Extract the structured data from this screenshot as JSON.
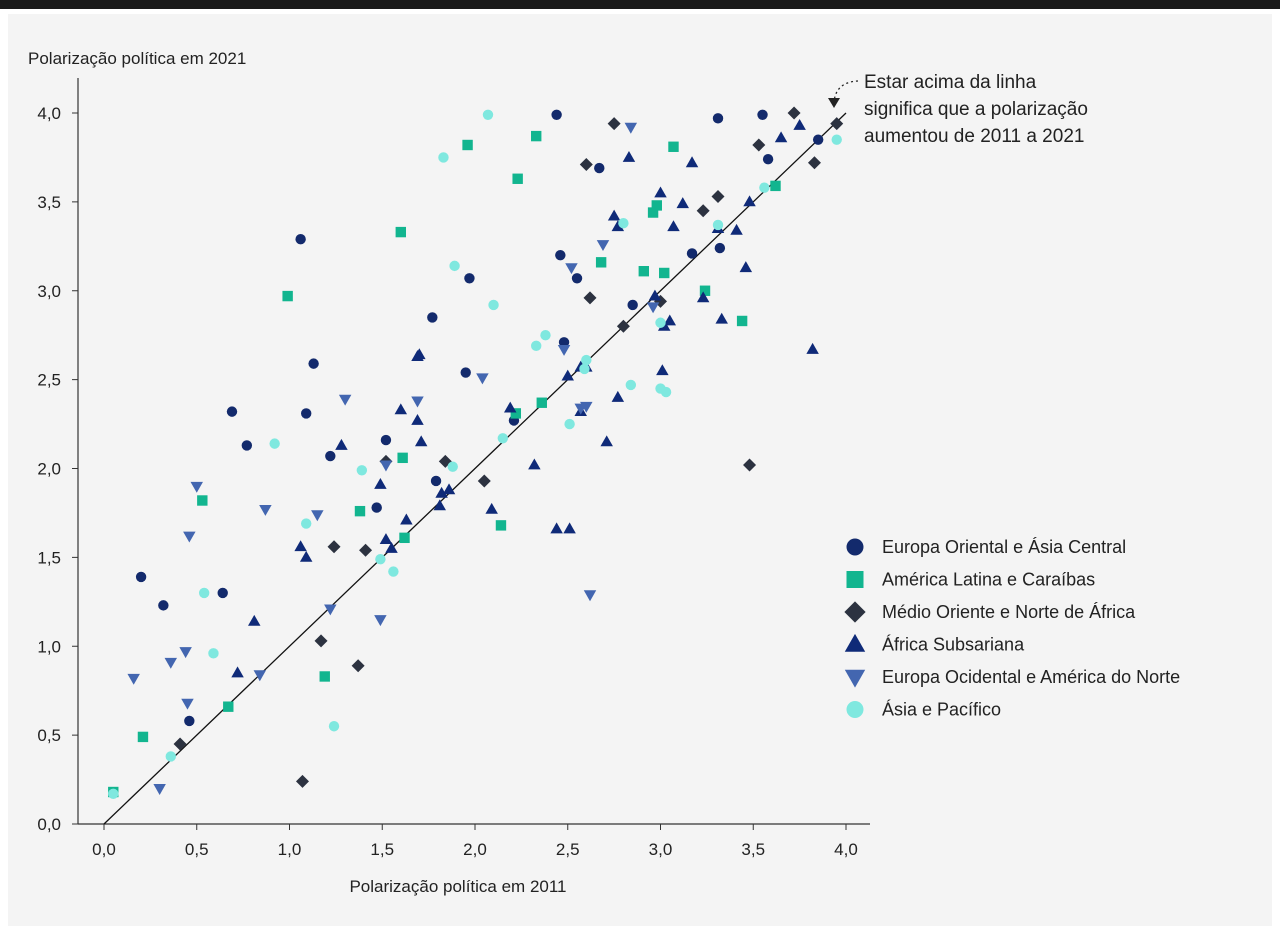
{
  "chart_data": {
    "type": "scatter",
    "title": "",
    "xlabel": "Polarização política em 2011",
    "ylabel": "Polarização política em 2021",
    "xlim": [
      0,
      4
    ],
    "ylim": [
      0,
      4
    ],
    "xticks": [
      "0,0",
      "0,5",
      "1,0",
      "1,5",
      "2,0",
      "2,5",
      "3,0",
      "3,5",
      "4,0"
    ],
    "yticks": [
      "0,0",
      "0,5",
      "1,0",
      "1,5",
      "2,0",
      "2,5",
      "3,0",
      "3,5",
      "4,0"
    ],
    "grid": false,
    "legend_position": "right",
    "reference_line": {
      "from": [
        0,
        0
      ],
      "to": [
        4,
        4
      ]
    },
    "annotation": [
      "Estar acima da linha",
      "significa que a polarização",
      "aumentou de 2011 a 2021"
    ],
    "series": [
      {
        "name": "Europa Oriental e Ásia Central",
        "marker": "circle",
        "color": "#132a6c",
        "points": [
          [
            0.2,
            1.39
          ],
          [
            0.32,
            1.23
          ],
          [
            0.46,
            0.58
          ],
          [
            0.64,
            1.3
          ],
          [
            0.69,
            2.32
          ],
          [
            0.77,
            2.13
          ],
          [
            1.06,
            3.29
          ],
          [
            1.09,
            2.31
          ],
          [
            1.13,
            2.59
          ],
          [
            1.22,
            2.07
          ],
          [
            1.47,
            1.78
          ],
          [
            1.52,
            2.16
          ],
          [
            1.77,
            2.85
          ],
          [
            1.79,
            1.93
          ],
          [
            1.95,
            2.54
          ],
          [
            1.97,
            3.07
          ],
          [
            2.21,
            2.27
          ],
          [
            2.44,
            3.99
          ],
          [
            2.46,
            3.2
          ],
          [
            2.48,
            2.71
          ],
          [
            2.55,
            3.07
          ],
          [
            2.67,
            3.69
          ],
          [
            2.85,
            2.92
          ],
          [
            3.17,
            3.21
          ],
          [
            3.31,
            3.97
          ],
          [
            3.32,
            3.24
          ],
          [
            3.55,
            3.99
          ],
          [
            3.58,
            3.74
          ],
          [
            3.85,
            3.85
          ]
        ]
      },
      {
        "name": "América Latina e Caraíbas",
        "marker": "square",
        "color": "#12b58f",
        "points": [
          [
            0.05,
            0.18
          ],
          [
            0.21,
            0.49
          ],
          [
            0.53,
            1.82
          ],
          [
            0.67,
            0.66
          ],
          [
            0.99,
            2.97
          ],
          [
            1.19,
            0.83
          ],
          [
            1.38,
            1.76
          ],
          [
            1.6,
            3.33
          ],
          [
            1.61,
            2.06
          ],
          [
            1.62,
            1.61
          ],
          [
            1.96,
            3.82
          ],
          [
            2.14,
            1.68
          ],
          [
            2.22,
            2.31
          ],
          [
            2.23,
            3.63
          ],
          [
            2.33,
            3.87
          ],
          [
            2.36,
            2.37
          ],
          [
            2.68,
            3.16
          ],
          [
            2.91,
            3.11
          ],
          [
            2.96,
            3.44
          ],
          [
            2.98,
            3.48
          ],
          [
            3.02,
            3.1
          ],
          [
            3.07,
            3.81
          ],
          [
            3.24,
            3.0
          ],
          [
            3.44,
            2.83
          ],
          [
            3.62,
            3.59
          ]
        ]
      },
      {
        "name": "Médio Oriente e Norte de África",
        "marker": "diamond",
        "color": "#2c3240",
        "points": [
          [
            0.41,
            0.45
          ],
          [
            1.07,
            0.24
          ],
          [
            1.17,
            1.03
          ],
          [
            1.24,
            1.56
          ],
          [
            1.37,
            0.89
          ],
          [
            1.41,
            1.54
          ],
          [
            1.52,
            2.04
          ],
          [
            1.84,
            2.04
          ],
          [
            2.05,
            1.93
          ],
          [
            2.6,
            3.71
          ],
          [
            2.62,
            2.96
          ],
          [
            2.8,
            2.8
          ],
          [
            2.75,
            3.94
          ],
          [
            3.0,
            2.94
          ],
          [
            3.23,
            3.45
          ],
          [
            3.31,
            3.53
          ],
          [
            3.48,
            2.02
          ],
          [
            3.53,
            3.82
          ],
          [
            3.72,
            4.0
          ],
          [
            3.83,
            3.72
          ],
          [
            3.95,
            3.94
          ]
        ]
      },
      {
        "name": "África Subsariana",
        "marker": "triangle-up",
        "color": "#0f2a78",
        "points": [
          [
            0.81,
            1.14
          ],
          [
            0.72,
            0.85
          ],
          [
            1.06,
            1.56
          ],
          [
            1.09,
            1.5
          ],
          [
            1.28,
            2.13
          ],
          [
            1.49,
            1.91
          ],
          [
            1.52,
            1.6
          ],
          [
            1.55,
            1.55
          ],
          [
            1.6,
            2.33
          ],
          [
            1.63,
            1.71
          ],
          [
            1.69,
            2.27
          ],
          [
            1.7,
            2.64
          ],
          [
            1.71,
            2.15
          ],
          [
            1.69,
            2.63
          ],
          [
            1.81,
            1.79
          ],
          [
            1.82,
            1.86
          ],
          [
            1.86,
            1.88
          ],
          [
            2.09,
            1.77
          ],
          [
            2.19,
            2.34
          ],
          [
            2.32,
            2.02
          ],
          [
            2.44,
            1.66
          ],
          [
            2.51,
            1.66
          ],
          [
            2.5,
            2.52
          ],
          [
            2.57,
            2.57
          ],
          [
            2.57,
            2.32
          ],
          [
            2.6,
            2.57
          ],
          [
            2.71,
            2.15
          ],
          [
            2.75,
            3.42
          ],
          [
            2.77,
            2.4
          ],
          [
            2.77,
            3.36
          ],
          [
            2.83,
            3.75
          ],
          [
            2.97,
            2.97
          ],
          [
            3.0,
            3.55
          ],
          [
            3.01,
            2.55
          ],
          [
            3.02,
            2.8
          ],
          [
            3.05,
            2.83
          ],
          [
            3.07,
            3.36
          ],
          [
            3.12,
            3.49
          ],
          [
            3.17,
            3.72
          ],
          [
            3.23,
            2.96
          ],
          [
            3.31,
            3.35
          ],
          [
            3.33,
            2.84
          ],
          [
            3.41,
            3.34
          ],
          [
            3.46,
            3.13
          ],
          [
            3.48,
            3.5
          ],
          [
            3.65,
            3.86
          ],
          [
            3.75,
            3.93
          ],
          [
            3.82,
            2.67
          ]
        ]
      },
      {
        "name": "Europa Ocidental e América do Norte",
        "marker": "triangle-down",
        "color": "#4366b0",
        "points": [
          [
            0.16,
            0.82
          ],
          [
            0.3,
            0.2
          ],
          [
            0.36,
            0.91
          ],
          [
            0.44,
            0.97
          ],
          [
            0.45,
            0.68
          ],
          [
            0.46,
            1.62
          ],
          [
            0.5,
            1.9
          ],
          [
            0.87,
            1.77
          ],
          [
            0.84,
            0.84
          ],
          [
            1.15,
            1.74
          ],
          [
            1.22,
            1.21
          ],
          [
            1.3,
            2.39
          ],
          [
            1.49,
            1.15
          ],
          [
            1.52,
            2.02
          ],
          [
            1.69,
            2.38
          ],
          [
            2.04,
            2.51
          ],
          [
            2.48,
            2.67
          ],
          [
            2.52,
            3.13
          ],
          [
            2.57,
            2.34
          ],
          [
            2.6,
            2.35
          ],
          [
            2.62,
            1.29
          ],
          [
            2.69,
            3.26
          ],
          [
            2.84,
            3.92
          ],
          [
            2.96,
            2.91
          ]
        ]
      },
      {
        "name": "Ásia e Pacífico",
        "marker": "circle",
        "color": "#7fe8df",
        "points": [
          [
            0.05,
            0.17
          ],
          [
            0.36,
            0.38
          ],
          [
            0.54,
            1.3
          ],
          [
            0.59,
            0.96
          ],
          [
            0.92,
            2.14
          ],
          [
            1.09,
            1.69
          ],
          [
            1.24,
            0.55
          ],
          [
            1.39,
            1.99
          ],
          [
            1.49,
            1.49
          ],
          [
            1.56,
            1.42
          ],
          [
            1.83,
            3.75
          ],
          [
            1.88,
            2.01
          ],
          [
            1.89,
            3.14
          ],
          [
            2.07,
            3.99
          ],
          [
            2.1,
            2.92
          ],
          [
            2.15,
            2.17
          ],
          [
            2.33,
            2.69
          ],
          [
            2.38,
            2.75
          ],
          [
            2.51,
            2.25
          ],
          [
            2.59,
            2.56
          ],
          [
            2.6,
            2.61
          ],
          [
            2.8,
            3.38
          ],
          [
            2.84,
            2.47
          ],
          [
            3.0,
            2.45
          ],
          [
            3.03,
            2.43
          ],
          [
            3.0,
            2.82
          ],
          [
            3.31,
            3.37
          ],
          [
            3.56,
            3.58
          ],
          [
            3.95,
            3.85
          ]
        ]
      }
    ]
  }
}
